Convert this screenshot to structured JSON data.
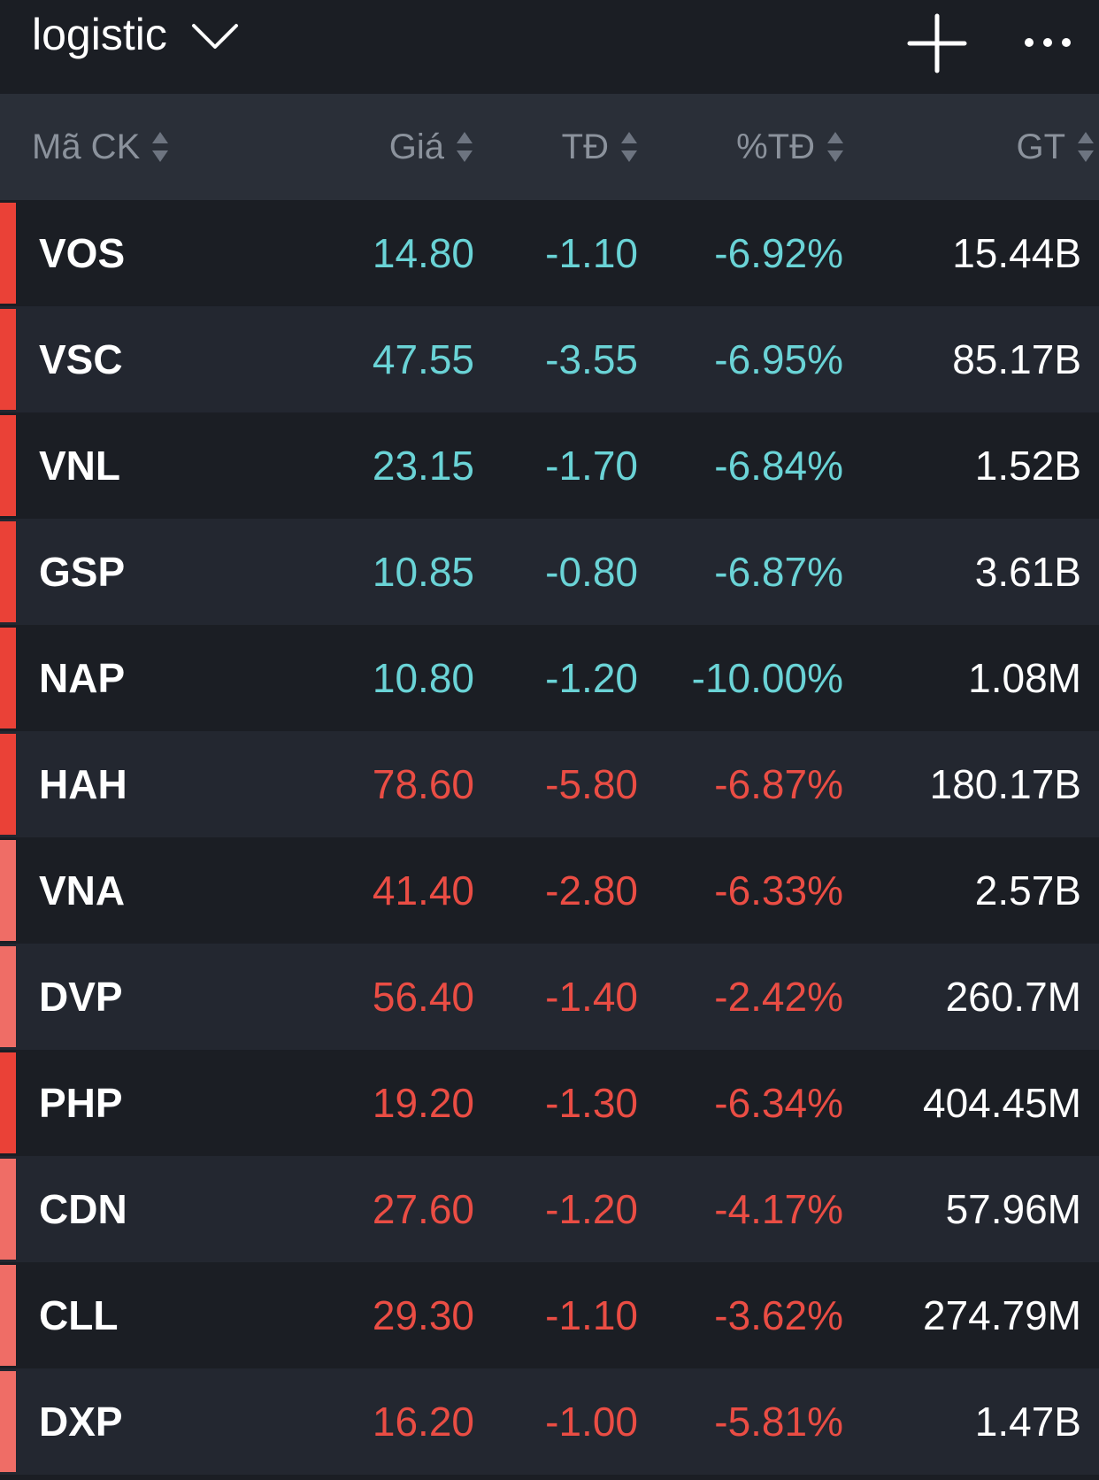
{
  "header": {
    "watchlist_name": "logistic",
    "dropdown_icon": "chevron-down-icon",
    "add_icon": "plus-icon",
    "more_icon": "more-horizontal-icon"
  },
  "columns": [
    {
      "key": "code",
      "label": "Mã CK",
      "sort_icon": "sort-icon"
    },
    {
      "key": "price",
      "label": "Giá",
      "sort_icon": "sort-icon"
    },
    {
      "key": "change",
      "label": "TĐ",
      "sort_icon": "sort-icon"
    },
    {
      "key": "pct",
      "label": "%TĐ",
      "sort_icon": "sort-icon"
    },
    {
      "key": "value",
      "label": "GT",
      "sort_icon": "sort-icon"
    }
  ],
  "colors": {
    "floor": "#6ad3d6",
    "down": "#ea4d44",
    "marker_strong": "#ea4137",
    "marker_light": "#ef6d66",
    "text": "#ffffff",
    "header_text": "#8b929c"
  },
  "rows": [
    {
      "code": "VOS",
      "price": "14.80",
      "change": "-1.10",
      "pct": "-6.92%",
      "value": "15.44B",
      "status": "floor",
      "marker": "strong"
    },
    {
      "code": "VSC",
      "price": "47.55",
      "change": "-3.55",
      "pct": "-6.95%",
      "value": "85.17B",
      "status": "floor",
      "marker": "strong"
    },
    {
      "code": "VNL",
      "price": "23.15",
      "change": "-1.70",
      "pct": "-6.84%",
      "value": "1.52B",
      "status": "floor",
      "marker": "strong"
    },
    {
      "code": "GSP",
      "price": "10.85",
      "change": "-0.80",
      "pct": "-6.87%",
      "value": "3.61B",
      "status": "floor",
      "marker": "strong"
    },
    {
      "code": "NAP",
      "price": "10.80",
      "change": "-1.20",
      "pct": "-10.00%",
      "value": "1.08M",
      "status": "floor",
      "marker": "strong"
    },
    {
      "code": "HAH",
      "price": "78.60",
      "change": "-5.80",
      "pct": "-6.87%",
      "value": "180.17B",
      "status": "down",
      "marker": "strong"
    },
    {
      "code": "VNA",
      "price": "41.40",
      "change": "-2.80",
      "pct": "-6.33%",
      "value": "2.57B",
      "status": "down",
      "marker": "light"
    },
    {
      "code": "DVP",
      "price": "56.40",
      "change": "-1.40",
      "pct": "-2.42%",
      "value": "260.7M",
      "status": "down",
      "marker": "light"
    },
    {
      "code": "PHP",
      "price": "19.20",
      "change": "-1.30",
      "pct": "-6.34%",
      "value": "404.45M",
      "status": "down",
      "marker": "strong"
    },
    {
      "code": "CDN",
      "price": "27.60",
      "change": "-1.20",
      "pct": "-4.17%",
      "value": "57.96M",
      "status": "down",
      "marker": "light"
    },
    {
      "code": "CLL",
      "price": "29.30",
      "change": "-1.10",
      "pct": "-3.62%",
      "value": "274.79M",
      "status": "down",
      "marker": "light"
    },
    {
      "code": "DXP",
      "price": "16.20",
      "change": "-1.00",
      "pct": "-5.81%",
      "value": "1.47B",
      "status": "down",
      "marker": "light"
    }
  ]
}
